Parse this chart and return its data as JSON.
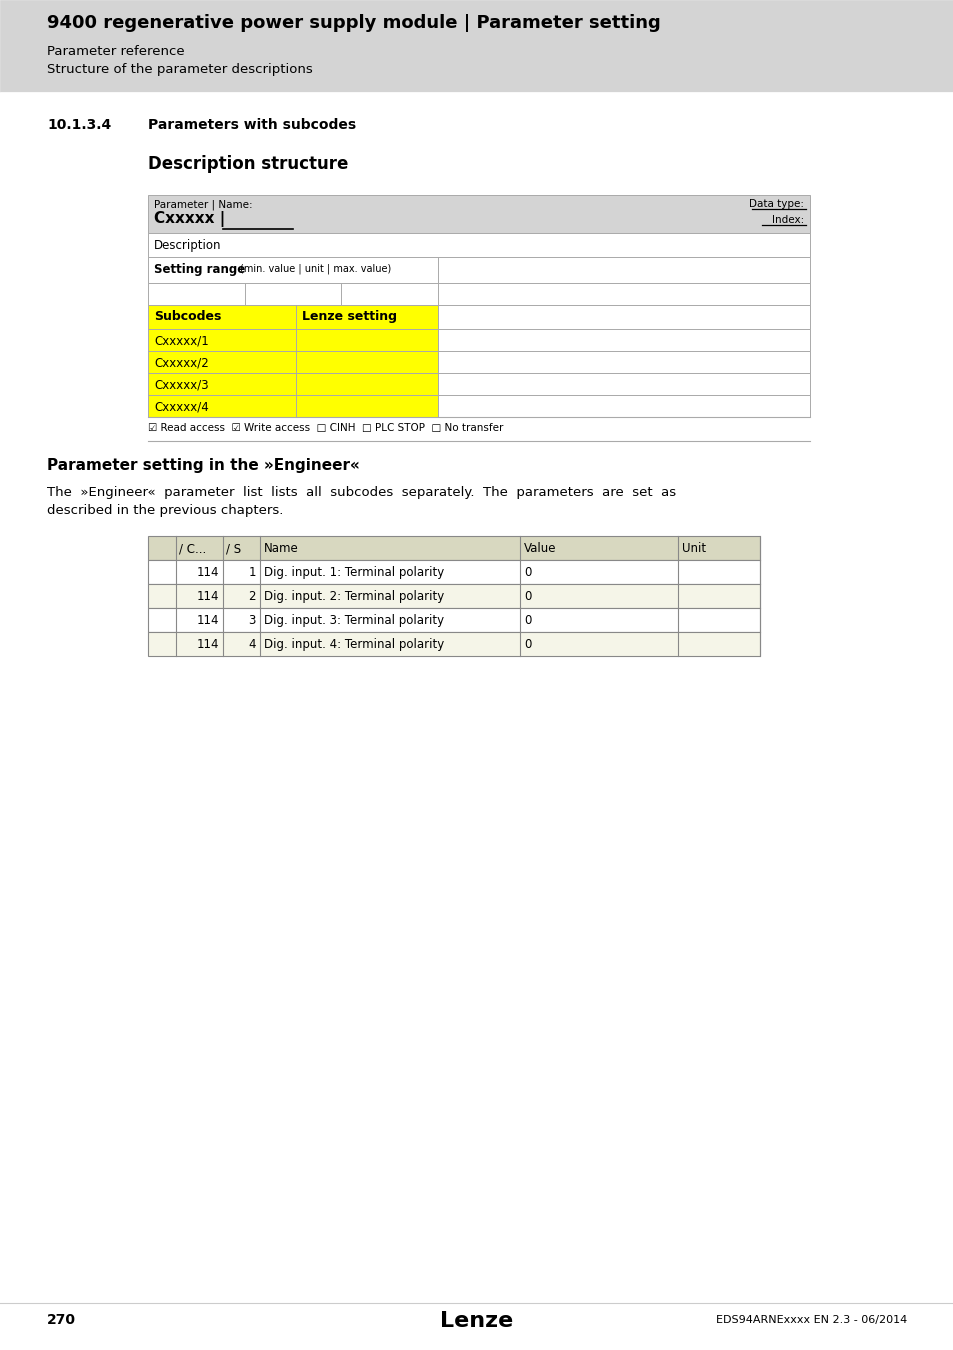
{
  "page_title": "9400 regenerative power supply module | Parameter setting",
  "page_subtitle1": "Parameter reference",
  "page_subtitle2": "Structure of the parameter descriptions",
  "section_num": "10.1.3.4",
  "section_title": "Parameters with subcodes",
  "desc_struct_title": "Description structure",
  "param_label": "Parameter | Name:",
  "param_code": "Cxxxxx |",
  "data_type_label": "Data type:",
  "index_label": "Index:",
  "description_label": "Description",
  "setting_range_label": "Setting range",
  "setting_range_detail": "(min. value | unit | max. value)",
  "subcodes_header": "Subcodes",
  "lenze_setting_header": "Lenze setting",
  "subcode_rows": [
    "Cxxxxx/1",
    "Cxxxxx/2",
    "Cxxxxx/3",
    "Cxxxxx/4"
  ],
  "checkboxes": "☑ Read access  ☑ Write access  □ CINH  □ PLC STOP  □ No transfer",
  "engineer_title": "Parameter setting in the »Engineer«",
  "engineer_text_1": "The  »Engineer«  parameter  list  lists  all  subcodes  separately.  The  parameters  are  set  as",
  "engineer_text_2": "described in the previous chapters.",
  "table2_headers": [
    "",
    "/ C...",
    "/ S",
    "Name",
    "Value",
    "Unit"
  ],
  "table2_rows": [
    [
      "",
      "114",
      "1",
      "Dig. input. 1: Terminal polarity",
      "0",
      ""
    ],
    [
      "",
      "114",
      "2",
      "Dig. input. 2: Terminal polarity",
      "0",
      ""
    ],
    [
      "",
      "114",
      "3",
      "Dig. input. 3: Terminal polarity",
      "0",
      ""
    ],
    [
      "",
      "114",
      "4",
      "Dig. input. 4: Terminal polarity",
      "0",
      ""
    ]
  ],
  "footer_page": "270",
  "footer_brand": "Lenze",
  "footer_doc": "EDS94ARNExxxx EN 2.3 - 06/2014",
  "header_bg": "#d4d4d4",
  "yellow": "#ffff00",
  "white": "#ffffff",
  "table2_header_bg": "#d8d8c0",
  "table2_alt_bg": "#f5f5e8",
  "border_color": "#aaaaaa",
  "dark_border": "#888888"
}
